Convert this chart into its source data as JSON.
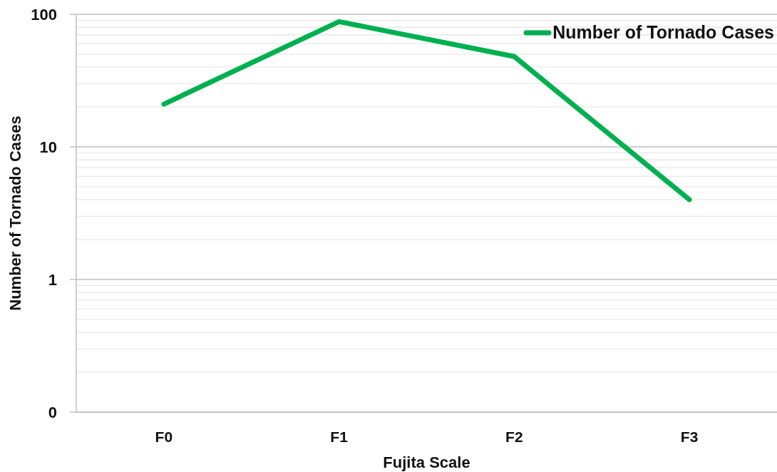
{
  "chart_data": {
    "type": "line",
    "xlabel": "Fujita Scale",
    "ylabel": "Number of Tornado Cases",
    "categories": [
      "F0",
      "F1",
      "F2",
      "F3"
    ],
    "series": [
      {
        "name": "Number of Tornado Cases",
        "color": "#00b050",
        "values": [
          21,
          88,
          48,
          4
        ]
      }
    ],
    "log": "y",
    "ylim": [
      0.1,
      100
    ],
    "yticks": [
      {
        "value": 0.1,
        "label": "0"
      },
      {
        "value": 0.2,
        "label": null
      },
      {
        "value": 0.3,
        "label": null
      },
      {
        "value": 0.4,
        "label": null
      },
      {
        "value": 0.5,
        "label": null
      },
      {
        "value": 0.6,
        "label": null
      },
      {
        "value": 0.7,
        "label": null
      },
      {
        "value": 0.8,
        "label": null
      },
      {
        "value": 0.9,
        "label": null
      },
      1,
      {
        "value": 2,
        "label": null
      },
      {
        "value": 3,
        "label": null
      },
      {
        "value": 4,
        "label": null
      },
      {
        "value": 5,
        "label": null
      },
      {
        "value": 6,
        "label": null
      },
      {
        "value": 7,
        "label": null
      },
      {
        "value": 8,
        "label": null
      },
      {
        "value": 9,
        "label": null
      },
      10,
      {
        "value": 20,
        "label": null
      },
      {
        "value": 30,
        "label": null
      },
      {
        "value": 40,
        "label": null
      },
      {
        "value": 50,
        "label": null
      },
      {
        "value": 60,
        "label": null
      },
      {
        "value": 70,
        "label": null
      },
      {
        "value": 80,
        "label": null
      },
      {
        "value": 90,
        "label": null
      },
      100
    ],
    "grid": "y",
    "legend": "top right",
    "marker": "none",
    "line_style": "solid"
  }
}
